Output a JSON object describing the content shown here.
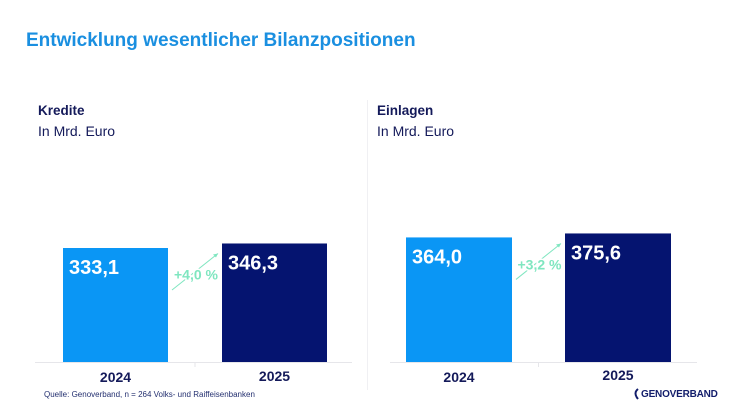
{
  "title": "Entwicklung wesentlicher Bilanzpositionen",
  "colors": {
    "title": "#1a8fe0",
    "bar_2024": "#0a96f5",
    "bar_2025": "#051470",
    "growth": "#7fe6c0",
    "label_text": "#141a5a"
  },
  "panels": [
    {
      "title": "Kredite",
      "subtitle": "In Mrd. Euro"
    },
    {
      "title": "Einlagen",
      "subtitle": "In Mrd. Euro"
    }
  ],
  "source": "Quelle: Genoverband, n = 264 Volks- und Raiffeisenbanken",
  "logo": {
    "text": "GENOVERBAND"
  },
  "chart_data": [
    {
      "type": "bar",
      "title": "Kredite",
      "subtitle": "In Mrd. Euro",
      "categories": [
        "2024",
        "2025"
      ],
      "values": [
        333.1,
        346.3
      ],
      "value_labels": [
        "333,1",
        "346,3"
      ],
      "growth_label": "+4,0 %",
      "xlabel": "",
      "ylabel": "In Mrd. Euro",
      "ylim": [
        0,
        420
      ],
      "grid": false
    },
    {
      "type": "bar",
      "title": "Einlagen",
      "subtitle": "In Mrd. Euro",
      "categories": [
        "2024",
        "2025"
      ],
      "values": [
        364.0,
        375.6
      ],
      "value_labels": [
        "364,0",
        "375,6"
      ],
      "growth_label": "+3,2 %",
      "xlabel": "",
      "ylabel": "In Mrd. Euro",
      "ylim": [
        0,
        420
      ],
      "grid": false
    }
  ]
}
